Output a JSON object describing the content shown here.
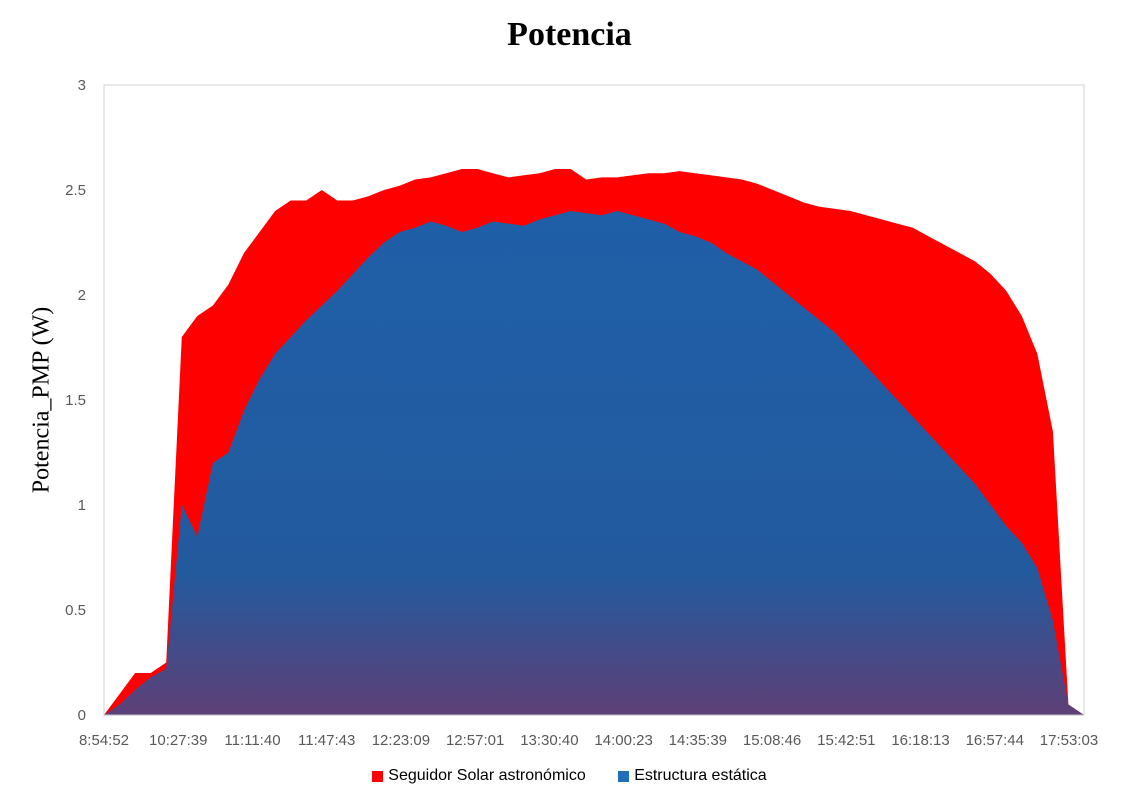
{
  "chart_data": {
    "type": "area",
    "title": "Potencia",
    "xlabel": "",
    "ylabel": "Potencia_PMP (W)",
    "ylim": [
      0,
      3
    ],
    "yticks": [
      "0",
      "0.5",
      "1",
      "1.5",
      "2",
      "2.5",
      "3"
    ],
    "x_tick_labels": [
      "8:54:52",
      "10:27:39",
      "11:11:40",
      "11:47:43",
      "12:23:09",
      "12:57:01",
      "13:30:40",
      "14:00:23",
      "14:35:39",
      "15:08:46",
      "15:42:51",
      "16:18:13",
      "16:57:44",
      "17:53:03"
    ],
    "grid": false,
    "legend_position": "bottom",
    "series": [
      {
        "name": "Seguidor Solar astronómico",
        "color": "#ff0000",
        "values": [
          0.0,
          0.1,
          0.2,
          0.2,
          0.25,
          1.8,
          1.9,
          1.95,
          2.05,
          2.2,
          2.3,
          2.4,
          2.45,
          2.45,
          2.5,
          2.45,
          2.45,
          2.47,
          2.5,
          2.52,
          2.55,
          2.56,
          2.58,
          2.6,
          2.6,
          2.58,
          2.56,
          2.57,
          2.58,
          2.6,
          2.6,
          2.55,
          2.56,
          2.56,
          2.57,
          2.58,
          2.58,
          2.59,
          2.58,
          2.57,
          2.56,
          2.55,
          2.53,
          2.5,
          2.47,
          2.44,
          2.42,
          2.41,
          2.4,
          2.38,
          2.36,
          2.34,
          2.32,
          2.28,
          2.24,
          2.2,
          2.16,
          2.1,
          2.02,
          1.9,
          1.72,
          1.35,
          0.05,
          0.0
        ]
      },
      {
        "name": "Estructura estática",
        "color": "#1f70b8",
        "values": [
          0.0,
          0.05,
          0.12,
          0.18,
          0.22,
          1.0,
          0.85,
          1.2,
          1.25,
          1.45,
          1.6,
          1.72,
          1.8,
          1.88,
          1.95,
          2.02,
          2.1,
          2.18,
          2.25,
          2.3,
          2.32,
          2.35,
          2.33,
          2.3,
          2.32,
          2.35,
          2.34,
          2.33,
          2.36,
          2.38,
          2.4,
          2.39,
          2.38,
          2.4,
          2.38,
          2.36,
          2.34,
          2.3,
          2.28,
          2.25,
          2.2,
          2.16,
          2.12,
          2.06,
          2.0,
          1.94,
          1.88,
          1.82,
          1.74,
          1.66,
          1.58,
          1.5,
          1.42,
          1.34,
          1.26,
          1.18,
          1.1,
          1.0,
          0.9,
          0.82,
          0.7,
          0.45,
          0.05,
          0.0
        ]
      }
    ]
  }
}
